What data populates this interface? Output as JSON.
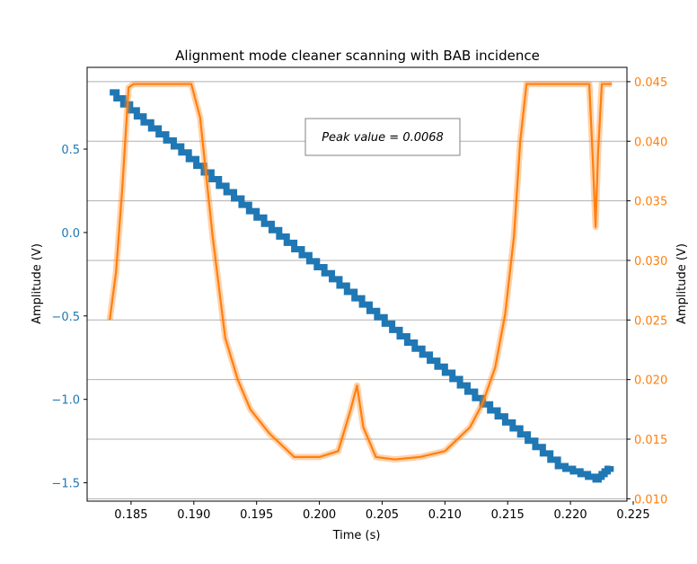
{
  "chart_data": {
    "type": "line",
    "title": "Alignment mode cleaner scanning with BAB incidence",
    "xlabel": "Time (s)",
    "ylabel_left": "Amplitude (V)",
    "ylabel_right": "Amplitude (V)",
    "xlim": [
      0.1815,
      0.2245
    ],
    "ylim_left": [
      -1.61,
      0.99
    ],
    "ylim_right": [
      0.0098,
      0.0462
    ],
    "x_ticks": [
      "0.185",
      "0.190",
      "0.195",
      "0.200",
      "0.205",
      "0.210",
      "0.215",
      "0.220",
      "0.225"
    ],
    "left_ticks": [
      "0.5",
      "0.0",
      "−0.5",
      "−1.0",
      "−1.5"
    ],
    "right_ticks": [
      "0.045",
      "0.040",
      "0.035",
      "0.030",
      "0.025",
      "0.020",
      "0.015",
      "0.010"
    ],
    "grid": "horizontal (right axis)",
    "annotation": "Peak value = 0.0068",
    "colors": {
      "left_series": "#1f77b4",
      "right_series": "#ff7f0e",
      "grid": "#b0b0b0"
    },
    "series": [
      {
        "axis": "left",
        "color": "#1f77b4",
        "x": [
          0.1833,
          0.186,
          0.189,
          0.192,
          0.195,
          0.198,
          0.201,
          0.204,
          0.207,
          0.21,
          0.213,
          0.216,
          0.219,
          0.222,
          0.2232
        ],
        "y": [
          0.84,
          0.66,
          0.48,
          0.28,
          0.09,
          -0.1,
          -0.28,
          -0.47,
          -0.66,
          -0.84,
          -1.03,
          -1.21,
          -1.4,
          -1.48,
          -1.4
        ]
      },
      {
        "axis": "right",
        "color": "#ff7f0e",
        "x": [
          0.1833,
          0.1838,
          0.1843,
          0.1848,
          0.1852,
          0.1898,
          0.1905,
          0.1915,
          0.1925,
          0.1935,
          0.1945,
          0.196,
          0.198,
          0.2,
          0.2015,
          0.2025,
          0.203,
          0.2035,
          0.2045,
          0.206,
          0.208,
          0.21,
          0.211,
          0.212,
          0.213,
          0.214,
          0.2148,
          0.2155,
          0.216,
          0.2165,
          0.2215,
          0.2218,
          0.222,
          0.2222,
          0.2225,
          0.2228,
          0.2233
        ],
        "y": [
          0.025,
          0.029,
          0.036,
          0.0445,
          0.0448,
          0.0448,
          0.042,
          0.032,
          0.0235,
          0.02,
          0.0175,
          0.0155,
          0.0135,
          0.0135,
          0.014,
          0.0175,
          0.0195,
          0.016,
          0.0135,
          0.0133,
          0.0135,
          0.014,
          0.015,
          0.016,
          0.018,
          0.021,
          0.0255,
          0.032,
          0.04,
          0.0448,
          0.0448,
          0.038,
          0.0328,
          0.039,
          0.0448,
          0.0448,
          0.0448
        ]
      }
    ]
  }
}
